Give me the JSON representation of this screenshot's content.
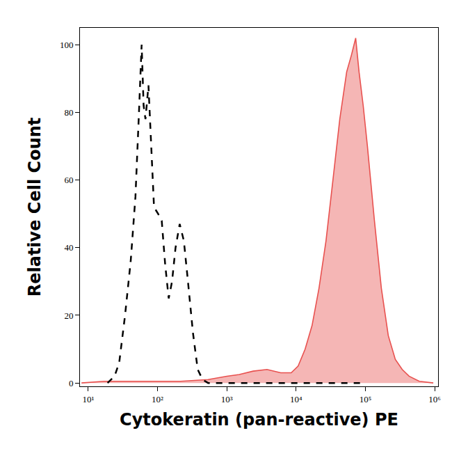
{
  "chart_data": {
    "type": "line",
    "x_label": "Cytokeratin (pan-reactive) PE",
    "y_label": "Relative Cell Count",
    "log": "x",
    "grid": false,
    "xlim": [
      7.6,
      1120000
    ],
    "ylim": [
      -1,
      105
    ],
    "xticks": [
      {
        "value": 10,
        "label": "10¹"
      },
      {
        "value": 100,
        "label": "10²"
      },
      {
        "value": 1000,
        "label": "10³"
      },
      {
        "value": 10000,
        "label": "10⁴"
      },
      {
        "value": 100000,
        "label": "10⁵"
      },
      {
        "value": 1000000,
        "label": "10⁶"
      }
    ],
    "yticks": [
      0,
      20,
      40,
      60,
      80,
      100
    ],
    "series": [
      {
        "type": "area",
        "color": "#e8514f",
        "line_style": "solid",
        "x": [
          8,
          17,
          54,
          214,
          537,
          1000,
          1514,
          2400,
          3800,
          6000,
          8500,
          10700,
          13500,
          17000,
          21400,
          27000,
          34000,
          42700,
          53700,
          63000,
          72400,
          81000,
          93000,
          107000,
          135000,
          170000,
          214000,
          270000,
          340000,
          427000,
          600000,
          955000
        ],
        "values": [
          0,
          0.5,
          0.5,
          0.5,
          1,
          2,
          2.5,
          3.5,
          4,
          3,
          3,
          5,
          10,
          17,
          28,
          42,
          60,
          78,
          92,
          97,
          102,
          92,
          82,
          70,
          48,
          28,
          14,
          7,
          4,
          2,
          0.5,
          0
        ]
      },
      {
        "type": "line",
        "color": "#000000",
        "line_style": "dashed",
        "x": [
          19,
          24,
          28,
          34,
          41,
          48,
          54,
          59,
          63,
          67,
          74,
          81,
          89,
          102,
          115,
          129,
          145,
          162,
          182,
          209,
          240,
          275,
          324,
          380,
          447,
          537,
          10000,
          100000
        ],
        "values": [
          0,
          2,
          6,
          20,
          36,
          55,
          80,
          100,
          82,
          78,
          88,
          70,
          52,
          50,
          48,
          35,
          25,
          30,
          40,
          47,
          42,
          30,
          15,
          4,
          1,
          0,
          0,
          0
        ]
      }
    ]
  }
}
